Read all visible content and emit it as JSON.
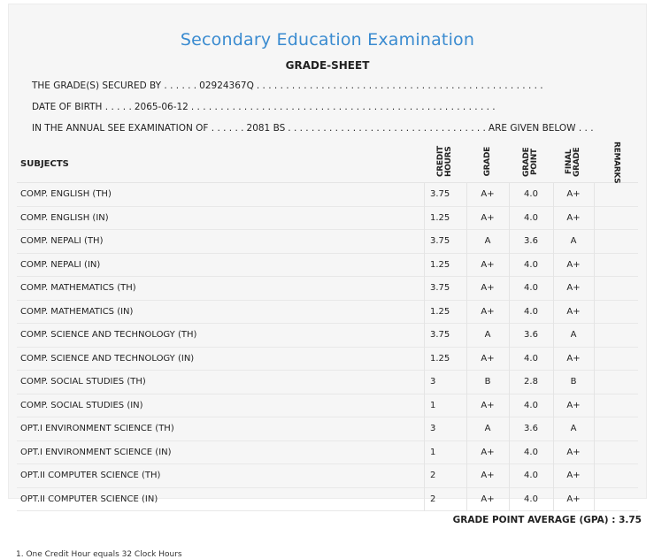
{
  "header": {
    "title": "Secondary Education Examination",
    "subtitle": "GRADE-SHEET"
  },
  "info": {
    "secured_by_label": "THE GRADE(S) SECURED BY . . . . . .",
    "secured_by_value": "02924367Q",
    "secured_by_dots": ". . . . . . . . . . . . . . . . . . . . . . . . . . . . . . . . . . . . . . . . . . . . . . . . .",
    "dob_label": "DATE OF BIRTH . . . . .",
    "dob_value": "2065-06-12",
    "dob_dots": ". . . . . . . . . . . . . . . . . . . . . . . . . . . . . . . . . . . . . . . . . . . . . . . . . . . .",
    "exam_label": "IN THE ANNUAL SEE EXAMINATION OF . . . . . .",
    "exam_value": "2081 BS",
    "exam_dots": ". . . . . . . . . . . . . . . . . . . . . . . . . . . . . . . . . .",
    "exam_suffix": "ARE GIVEN BELOW . . ."
  },
  "table": {
    "columns": {
      "subjects": "SUBJECTS",
      "credit_hours": "CREDIT HOURS",
      "grade": "GRADE",
      "grade_point": "GRADE POINT",
      "final_grade": "FINAL GRADE",
      "remarks": "REMARKS"
    },
    "rows": [
      {
        "subject": "COMP. ENGLISH (TH)",
        "credit": "3.75",
        "grade": "A+",
        "gp": "4.0",
        "final": "A+"
      },
      {
        "subject": "COMP. ENGLISH (IN)",
        "credit": "1.25",
        "grade": "A+",
        "gp": "4.0",
        "final": "A+"
      },
      {
        "subject": "COMP. NEPALI (TH)",
        "credit": "3.75",
        "grade": "A",
        "gp": "3.6",
        "final": "A"
      },
      {
        "subject": "COMP. NEPALI (IN)",
        "credit": "1.25",
        "grade": "A+",
        "gp": "4.0",
        "final": "A+"
      },
      {
        "subject": "COMP. MATHEMATICS (TH)",
        "credit": "3.75",
        "grade": "A+",
        "gp": "4.0",
        "final": "A+"
      },
      {
        "subject": "COMP. MATHEMATICS (IN)",
        "credit": "1.25",
        "grade": "A+",
        "gp": "4.0",
        "final": "A+"
      },
      {
        "subject": "COMP. SCIENCE AND TECHNOLOGY (TH)",
        "credit": "3.75",
        "grade": "A",
        "gp": "3.6",
        "final": "A"
      },
      {
        "subject": "COMP. SCIENCE AND TECHNOLOGY (IN)",
        "credit": "1.25",
        "grade": "A+",
        "gp": "4.0",
        "final": "A+"
      },
      {
        "subject": "COMP. SOCIAL STUDIES (TH)",
        "credit": "3",
        "grade": "B",
        "gp": "2.8",
        "final": "B"
      },
      {
        "subject": "COMP. SOCIAL STUDIES (IN)",
        "credit": "1",
        "grade": "A+",
        "gp": "4.0",
        "final": "A+"
      },
      {
        "subject": "OPT.I ENVIRONMENT SCIENCE (TH)",
        "credit": "3",
        "grade": "A",
        "gp": "3.6",
        "final": "A"
      },
      {
        "subject": "OPT.I ENVIRONMENT SCIENCE (IN)",
        "credit": "1",
        "grade": "A+",
        "gp": "4.0",
        "final": "A+"
      },
      {
        "subject": "OPT.II COMPUTER SCIENCE (TH)",
        "credit": "2",
        "grade": "A+",
        "gp": "4.0",
        "final": "A+"
      },
      {
        "subject": "OPT.II COMPUTER SCIENCE (IN)",
        "credit": "2",
        "grade": "A+",
        "gp": "4.0",
        "final": "A+"
      }
    ]
  },
  "gpa": {
    "label": "GRADE POINT AVERAGE (GPA) :",
    "value": "3.75"
  },
  "footer": {
    "note": "1. One Credit Hour equals 32 Clock Hours"
  }
}
